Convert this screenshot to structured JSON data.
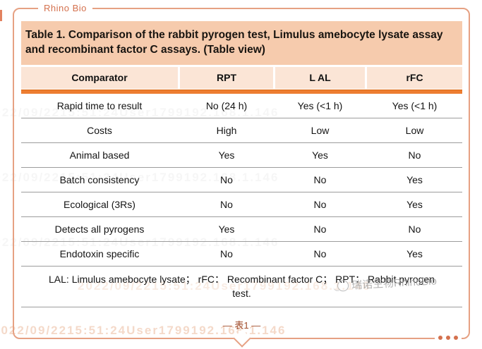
{
  "brand": {
    "label": "Rhino Bio",
    "watermark_name": "瑞诺生物RhinoBio"
  },
  "title": "Table 1. Comparison of the rabbit pyrogen test, Limulus amebocyte lysate assay and recombinant factor C assays. (Table view)",
  "table": {
    "headers": [
      "Comparator",
      "RPT",
      "L AL",
      "rFC"
    ],
    "rows": [
      [
        "Rapid time to result",
        "No (24 h)",
        "Yes (<1 h)",
        "Yes (<1 h)"
      ],
      [
        "Costs",
        "High",
        "Low",
        "Low"
      ],
      [
        "Animal based",
        "Yes",
        "Yes",
        "No"
      ],
      [
        "Batch consistency",
        "No",
        "No",
        "Yes"
      ],
      [
        "Ecological (3Rs)",
        "No",
        "No",
        "Yes"
      ],
      [
        "Detects all pyrogens",
        "Yes",
        "No",
        "No"
      ],
      [
        "Endotoxin specific",
        "No",
        "No",
        "Yes"
      ]
    ],
    "footnote": "LAL: Limulus amebocyte lysate； rFC： Recombinant factor C； RPT： Rabbit pyrogen test."
  },
  "caption": "— 表1 —",
  "watermark": {
    "faint_text": "2022/09/2215:51:24User1799192.168.1.146"
  },
  "colors": {
    "frame_border": "#e6a183",
    "brand_text": "#d4714e",
    "title_bg": "#f6cbad",
    "header_bg": "#fbe5d6",
    "accent_bar": "#ed7d31",
    "row_divider": "#9c9c9c",
    "caption_text": "#a04c2b"
  }
}
